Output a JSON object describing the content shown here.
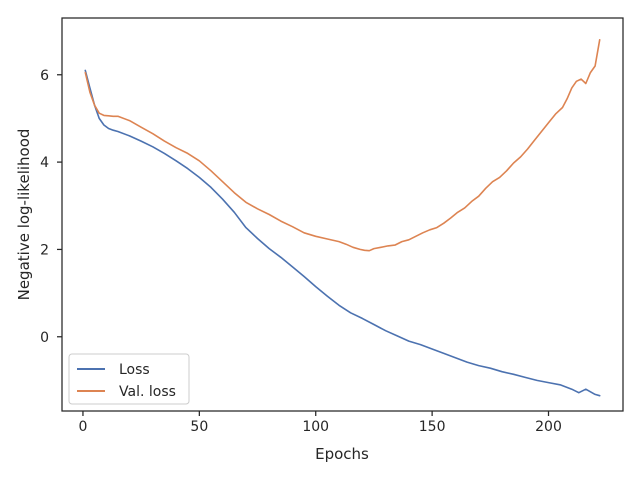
{
  "chart_data": {
    "type": "line",
    "title": "",
    "xlabel": "Epochs",
    "ylabel": "Negative log-likelihood",
    "xlim": [
      -9,
      232
    ],
    "ylim": [
      -1.7,
      7.3
    ],
    "xticks": [
      0,
      50,
      100,
      150,
      200
    ],
    "yticks": [
      0,
      2,
      4,
      6
    ],
    "grid": false,
    "legend_position": "lower-left",
    "series": [
      {
        "name": "Loss",
        "color": "#4c72b0",
        "x": [
          1,
          3,
          5,
          7,
          9,
          11,
          13,
          15,
          20,
          25,
          30,
          35,
          40,
          45,
          50,
          55,
          60,
          65,
          70,
          75,
          80,
          85,
          90,
          95,
          100,
          105,
          110,
          115,
          120,
          125,
          130,
          135,
          140,
          145,
          150,
          155,
          160,
          165,
          170,
          175,
          180,
          185,
          190,
          195,
          200,
          205,
          210,
          213,
          216,
          220,
          222
        ],
        "y": [
          6.1,
          5.7,
          5.3,
          5.0,
          4.85,
          4.77,
          4.73,
          4.7,
          4.6,
          4.48,
          4.35,
          4.2,
          4.03,
          3.85,
          3.65,
          3.42,
          3.15,
          2.85,
          2.5,
          2.25,
          2.02,
          1.82,
          1.6,
          1.38,
          1.15,
          0.93,
          0.72,
          0.55,
          0.42,
          0.28,
          0.14,
          0.02,
          -0.1,
          -0.18,
          -0.28,
          -0.38,
          -0.48,
          -0.58,
          -0.66,
          -0.72,
          -0.8,
          -0.86,
          -0.93,
          -1.0,
          -1.05,
          -1.1,
          -1.2,
          -1.28,
          -1.2,
          -1.32,
          -1.35
        ]
      },
      {
        "name": "Val. loss",
        "color": "#dd8452",
        "x": [
          1,
          3,
          5,
          7,
          9,
          11,
          13,
          15,
          20,
          25,
          30,
          35,
          40,
          45,
          50,
          55,
          60,
          65,
          70,
          75,
          80,
          85,
          90,
          95,
          100,
          105,
          110,
          113,
          116,
          119,
          121,
          123,
          125,
          128,
          131,
          134,
          137,
          140,
          143,
          146,
          149,
          152,
          155,
          158,
          161,
          164,
          167,
          170,
          173,
          176,
          179,
          182,
          185,
          188,
          191,
          194,
          197,
          200,
          203,
          206,
          208,
          210,
          212,
          214,
          216,
          218,
          220,
          222
        ],
        "y": [
          6.05,
          5.6,
          5.3,
          5.12,
          5.07,
          5.06,
          5.05,
          5.05,
          4.95,
          4.8,
          4.65,
          4.48,
          4.33,
          4.2,
          4.03,
          3.8,
          3.55,
          3.3,
          3.08,
          2.93,
          2.8,
          2.65,
          2.52,
          2.38,
          2.3,
          2.24,
          2.18,
          2.12,
          2.05,
          2.0,
          1.98,
          1.97,
          2.02,
          2.05,
          2.08,
          2.1,
          2.18,
          2.22,
          2.3,
          2.38,
          2.45,
          2.5,
          2.6,
          2.72,
          2.85,
          2.95,
          3.1,
          3.22,
          3.4,
          3.55,
          3.65,
          3.8,
          3.98,
          4.12,
          4.3,
          4.5,
          4.7,
          4.9,
          5.1,
          5.25,
          5.45,
          5.7,
          5.85,
          5.9,
          5.8,
          6.05,
          6.2,
          6.8
        ]
      }
    ]
  }
}
